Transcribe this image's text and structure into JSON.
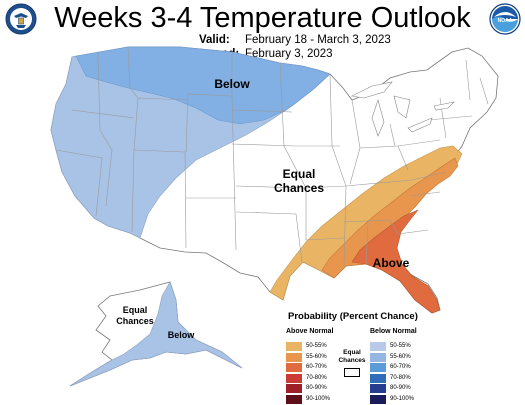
{
  "header": {
    "title": "Weeks 3-4 Temperature Outlook",
    "valid_label": "Valid:",
    "valid_value": "February 18 - March 3, 2023",
    "issued_label": "Issued:",
    "issued_value": "February 3, 2023"
  },
  "logos": {
    "left": "Department of Commerce seal",
    "right": "NOAA logo",
    "right_text": "NOAA"
  },
  "map_labels": {
    "below_north": "Below",
    "equal_center_1": "Equal",
    "equal_center_2": "Chances",
    "above_southeast": "Above",
    "equal_alaska_1": "Equal",
    "equal_alaska_2": "Chances",
    "below_alaska": "Below"
  },
  "legend": {
    "title": "Probability (Percent Chance)",
    "above_heading": "Above Normal",
    "below_heading": "Below Normal",
    "equal_label": "Equal Chances",
    "above": [
      {
        "label": "50-55%",
        "color": "#e9b565"
      },
      {
        "label": "55-60%",
        "color": "#e8964d"
      },
      {
        "label": "60-70%",
        "color": "#e06b3e"
      },
      {
        "label": "70-80%",
        "color": "#cb3a34"
      },
      {
        "label": "80-90%",
        "color": "#9e1f27"
      },
      {
        "label": "90-100%",
        "color": "#5f0f17"
      }
    ],
    "below": [
      {
        "label": "50-55%",
        "color": "#b9c9e8"
      },
      {
        "label": "55-60%",
        "color": "#96b6e2"
      },
      {
        "label": "60-70%",
        "color": "#5a9bd8"
      },
      {
        "label": "70-80%",
        "color": "#2f6db8"
      },
      {
        "label": "80-90%",
        "color": "#263c8f"
      },
      {
        "label": "90-100%",
        "color": "#1b1d5b"
      }
    ]
  },
  "colors": {
    "below_50_55": "#a9c3e6",
    "below_55_60": "#82b0e4",
    "above_50_55": "#e9b565",
    "above_55_60": "#e8964d",
    "above_60_70": "#e06b3e",
    "equal_chances": "#ffffff",
    "boundary": "#999999"
  }
}
